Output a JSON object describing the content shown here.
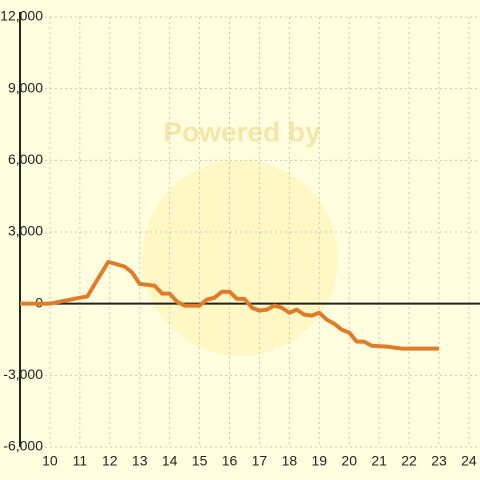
{
  "chart_data": {
    "type": "line",
    "watermark": "Powered by",
    "x": [
      9,
      10,
      11,
      11.25,
      11.5,
      11.95,
      12.5,
      12.75,
      13,
      13.5,
      13.75,
      14,
      14.25,
      14.5,
      15,
      15.25,
      15.5,
      15.75,
      16,
      16.25,
      16.5,
      16.75,
      17,
      17.25,
      17.5,
      17.75,
      18,
      18.25,
      18.5,
      18.75,
      19,
      19.25,
      19.5,
      19.75,
      20,
      20.25,
      20.5,
      20.75,
      21.25,
      21.75,
      23
    ],
    "series": [
      {
        "color": "#e07b28",
        "values": [
          0,
          0,
          250,
          300,
          830,
          1750,
          1550,
          1300,
          830,
          750,
          420,
          420,
          80,
          -80,
          -80,
          170,
          250,
          500,
          500,
          200,
          200,
          -170,
          -290,
          -250,
          -80,
          -170,
          -380,
          -250,
          -460,
          -500,
          -380,
          -670,
          -840,
          -1090,
          -1210,
          -1590,
          -1590,
          -1760,
          -1800,
          -1880,
          -1880
        ]
      }
    ],
    "xlim": [
      9,
      24.37
    ],
    "xticks": [
      10,
      11,
      12,
      13,
      14,
      15,
      16,
      17,
      18,
      19,
      20,
      21,
      22,
      23,
      24
    ],
    "ylim": [
      -6000,
      12000
    ],
    "yticks": [
      {
        "value": -6000,
        "label": "-6,000"
      },
      {
        "value": -3000,
        "label": "-3,000"
      },
      0,
      {
        "value": 3000,
        "label": "3,000"
      },
      {
        "value": 6000,
        "label": "6,000"
      },
      {
        "value": 9000,
        "label": "9,000"
      },
      {
        "value": 12000,
        "label": "12,000"
      }
    ],
    "grid": true
  }
}
